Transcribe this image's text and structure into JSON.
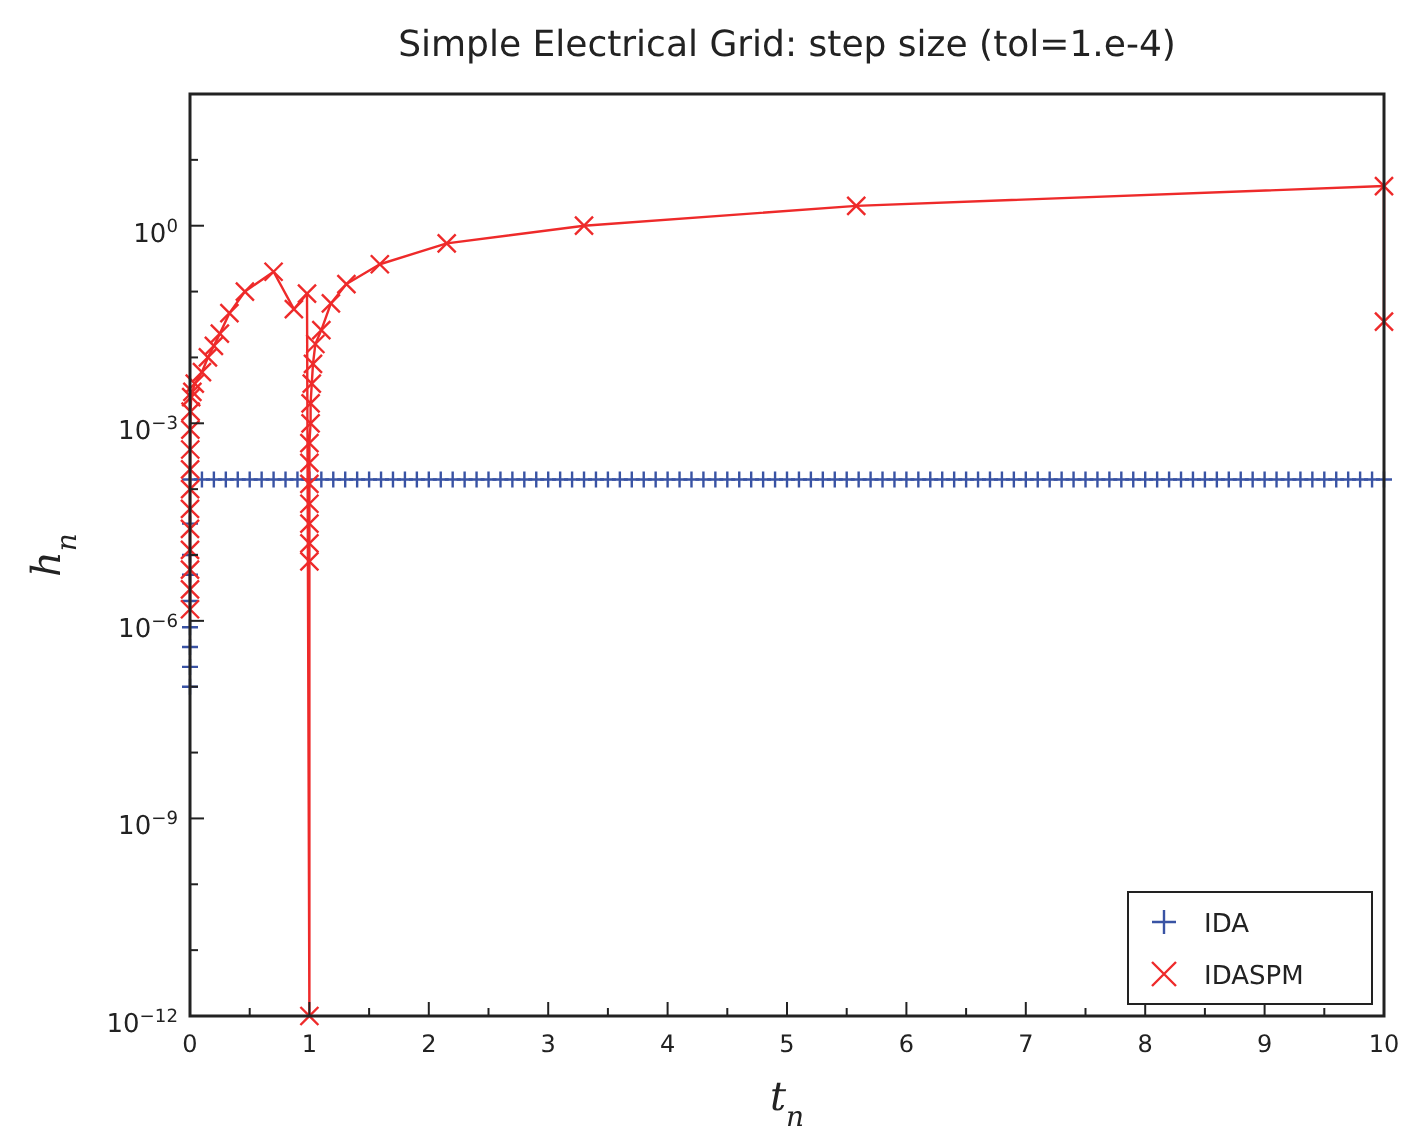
{
  "chart_data": {
    "type": "line",
    "title": "Simple Electrical Grid: step size (tol=1.e-4)",
    "xlabel": "t$_{n}$",
    "ylabel": "h$_{n}$",
    "log": "y",
    "grid": false,
    "legend": "bottom right",
    "xlim": [
      0,
      10
    ],
    "ylim": [
      1e-12,
      100
    ],
    "xticks": [
      0,
      {
        "value": 0.5,
        "label": null
      },
      1,
      {
        "value": 1.5,
        "label": null
      },
      2,
      {
        "value": 2.5,
        "label": null
      },
      3,
      {
        "value": 3.5,
        "label": null
      },
      4,
      {
        "value": 4.5,
        "label": null
      },
      5,
      {
        "value": 5.5,
        "label": null
      },
      6,
      {
        "value": 6.5,
        "label": null
      },
      7,
      {
        "value": 7.5,
        "label": null
      },
      8,
      {
        "value": 8.5,
        "label": null
      },
      9,
      {
        "value": 9.5,
        "label": null
      },
      10
    ],
    "yticks": [
      {
        "value": 1e-12,
        "label": "10$^{−12}$"
      },
      {
        "value": 1e-11,
        "label": null
      },
      {
        "value": 1e-10,
        "label": null
      },
      {
        "value": 1e-09,
        "label": "10$^{−9}$"
      },
      {
        "value": 1e-08,
        "label": null
      },
      {
        "value": 1e-07,
        "label": null
      },
      {
        "value": 1e-06,
        "label": "10$^{−6}$"
      },
      {
        "value": 1e-05,
        "label": null
      },
      {
        "value": 0.0001,
        "label": null
      },
      {
        "value": 0.001,
        "label": "10$^{−3}$"
      },
      {
        "value": 0.01,
        "label": null
      },
      {
        "value": 0.1,
        "label": null
      },
      {
        "value": 1,
        "label": "10$^{0}$"
      },
      {
        "value": 10,
        "label": null
      }
    ],
    "series": [
      {
        "name": "IDA",
        "type": "scatter",
        "marker": "cross",
        "color": "#3953a4",
        "x": [
          0,
          0,
          0,
          0,
          0,
          0,
          0,
          0,
          0,
          0.1,
          0.2,
          0.3,
          0.4,
          0.5,
          0.6,
          0.7,
          0.8,
          0.9,
          1,
          1.1,
          1.2,
          1.3,
          1.4,
          1.5,
          1.6,
          1.7,
          1.8,
          1.9,
          2,
          2.1,
          2.2,
          2.3,
          2.4,
          2.5,
          2.6,
          2.7,
          2.8,
          2.9,
          3,
          3.1,
          3.2,
          3.3,
          3.4,
          3.5,
          3.6,
          3.7,
          3.8,
          3.9,
          4,
          4.1,
          4.2,
          4.3,
          4.4,
          4.5,
          4.6,
          4.7,
          4.8,
          4.9,
          5,
          5.1,
          5.2,
          5.3,
          5.4,
          5.5,
          5.6,
          5.7,
          5.8,
          5.9,
          6,
          6.1,
          6.2,
          6.3,
          6.4,
          6.5,
          6.6,
          6.7,
          6.8,
          6.9,
          7,
          7.1,
          7.2,
          7.3,
          7.4,
          7.5,
          7.6,
          7.7,
          7.8,
          7.9,
          8,
          8.1,
          8.2,
          8.3,
          8.4,
          8.5,
          8.6,
          8.7,
          8.8,
          8.9,
          9,
          9.1,
          9.2,
          9.3,
          9.4,
          9.5,
          9.6,
          9.7,
          9.8,
          9.9,
          10
        ],
        "values": [
          1e-07,
          2e-07,
          4e-07,
          8e-07,
          2e-06,
          5e-06,
          1e-05,
          3e-05,
          0.00014,
          0.00014,
          0.00014,
          0.00014,
          0.00014,
          0.00014,
          0.00014,
          0.00014,
          0.00014,
          0.00014,
          0.00014,
          0.00014,
          0.00014,
          0.00014,
          0.00014,
          0.00014,
          0.00014,
          0.00014,
          0.00014,
          0.00014,
          0.00014,
          0.00014,
          0.00014,
          0.00014,
          0.00014,
          0.00014,
          0.00014,
          0.00014,
          0.00014,
          0.00014,
          0.00014,
          0.00014,
          0.00014,
          0.00014,
          0.00014,
          0.00014,
          0.00014,
          0.00014,
          0.00014,
          0.00014,
          0.00014,
          0.00014,
          0.00014,
          0.00014,
          0.00014,
          0.00014,
          0.00014,
          0.00014,
          0.00014,
          0.00014,
          0.00014,
          0.00014,
          0.00014,
          0.00014,
          0.00014,
          0.00014,
          0.00014,
          0.00014,
          0.00014,
          0.00014,
          0.00014,
          0.00014,
          0.00014,
          0.00014,
          0.00014,
          0.00014,
          0.00014,
          0.00014,
          0.00014,
          0.00014,
          0.00014,
          0.00014,
          0.00014,
          0.00014,
          0.00014,
          0.00014,
          0.00014,
          0.00014,
          0.00014,
          0.00014,
          0.00014,
          0.00014,
          0.00014,
          0.00014,
          0.00014,
          0.00014,
          0.00014,
          0.00014,
          0.00014,
          0.00014,
          0.00014,
          0.00014,
          0.00014,
          0.00014,
          0.00014,
          0.00014,
          0.00014,
          0.00014,
          0.00014,
          0.00014,
          0.00014
        ]
      },
      {
        "name": "IDASPM",
        "marker": "x",
        "line_style": "solid",
        "color": "#ee2a2a",
        "x": [
          0,
          0,
          0,
          0,
          0,
          0,
          0.001,
          0.001,
          0.002,
          0.003,
          0.005,
          0.01,
          0.02,
          0.04,
          0.06,
          0.1,
          0.15,
          0.2,
          0.25,
          0.33,
          0.46,
          0.7,
          0.87,
          0.98,
          1,
          1,
          1,
          1,
          1,
          1,
          1,
          1,
          1.01,
          1.01,
          1.02,
          1.03,
          1.05,
          1.1,
          1.18,
          1.31,
          1.59,
          2.15,
          3.3,
          5.58,
          10,
          10
        ],
        "values": [
          1.5e-06,
          3e-06,
          6e-06,
          1.2e-05,
          2.5e-05,
          5e-05,
          0.0001,
          0.0002,
          0.0004,
          0.0008,
          0.0015,
          0.0025,
          0.003,
          0.004,
          null,
          0.006,
          0.01,
          0.015,
          0.023,
          0.047,
          0.1,
          0.2,
          0.054,
          0.093,
          1e-12,
          8e-06,
          1.5e-05,
          3e-05,
          6e-05,
          0.00012,
          0.00025,
          0.0005,
          0.001,
          0.002,
          0.004,
          0.008,
          0.016,
          0.026,
          0.066,
          0.13,
          0.26,
          0.54,
          1,
          2,
          4,
          0.035
        ]
      }
    ]
  }
}
